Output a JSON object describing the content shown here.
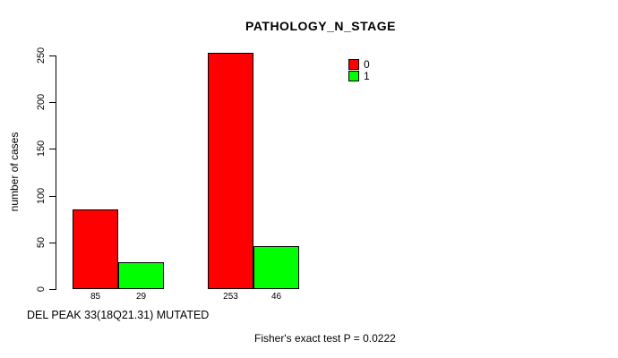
{
  "title": "PATHOLOGY_N_STAGE",
  "y_axis": {
    "label": "number of cases",
    "ticks": [
      0,
      50,
      100,
      150,
      200,
      250
    ]
  },
  "x_axis": {
    "label": "DEL PEAK 33(18Q21.31) MUTATED"
  },
  "footer": "Fisher's exact test P = 0.0222",
  "colors": {
    "series0": "#FF0000",
    "series1": "#00FF00",
    "axis": "#000000",
    "background": "#FFFFFF"
  },
  "legend": {
    "position": "top-right",
    "items": [
      {
        "label": "0",
        "color": "#FF0000"
      },
      {
        "label": "1",
        "color": "#00FF00"
      }
    ]
  },
  "chart_data": {
    "type": "bar",
    "title": "PATHOLOGY_N_STAGE",
    "xlabel": "DEL PEAK 33(18Q21.31) MUTATED",
    "ylabel": "number of cases",
    "ylim": [
      0,
      250
    ],
    "yticks": [
      0,
      50,
      100,
      150,
      200,
      250
    ],
    "grid": false,
    "legend_position": "top-right",
    "series": [
      {
        "name": "0",
        "color": "#FF0000",
        "values": [
          85,
          253
        ]
      },
      {
        "name": "1",
        "color": "#00FF00",
        "values": [
          29,
          46
        ]
      }
    ],
    "bar_value_labels": [
      [
        85,
        29
      ],
      [
        253,
        46
      ]
    ],
    "annotation": "Fisher's exact test P = 0.0222"
  }
}
